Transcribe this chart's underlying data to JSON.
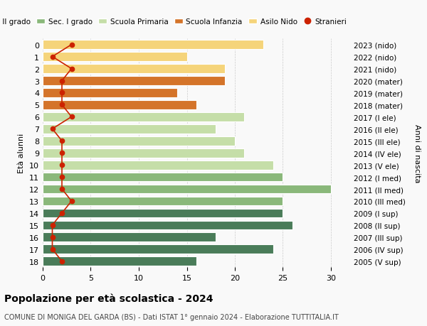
{
  "ages": [
    18,
    17,
    16,
    15,
    14,
    13,
    12,
    11,
    10,
    9,
    8,
    7,
    6,
    5,
    4,
    3,
    2,
    1,
    0
  ],
  "right_labels": [
    "2005 (V sup)",
    "2006 (IV sup)",
    "2007 (III sup)",
    "2008 (II sup)",
    "2009 (I sup)",
    "2010 (III med)",
    "2011 (II med)",
    "2012 (I med)",
    "2013 (V ele)",
    "2014 (IV ele)",
    "2015 (III ele)",
    "2016 (II ele)",
    "2017 (I ele)",
    "2018 (mater)",
    "2019 (mater)",
    "2020 (mater)",
    "2021 (nido)",
    "2022 (nido)",
    "2023 (nido)"
  ],
  "bar_values": [
    16,
    24,
    18,
    26,
    25,
    25,
    30,
    25,
    24,
    21,
    20,
    18,
    21,
    16,
    14,
    19,
    19,
    15,
    23
  ],
  "bar_colors": [
    "#4a7c59",
    "#4a7c59",
    "#4a7c59",
    "#4a7c59",
    "#4a7c59",
    "#8ab87a",
    "#8ab87a",
    "#8ab87a",
    "#c5dea8",
    "#c5dea8",
    "#c5dea8",
    "#c5dea8",
    "#c5dea8",
    "#d4742a",
    "#d4742a",
    "#d4742a",
    "#f5d47a",
    "#f5d47a",
    "#f5d47a"
  ],
  "stranieri_values": [
    2,
    1,
    1,
    1,
    2,
    3,
    2,
    2,
    2,
    2,
    2,
    1,
    3,
    2,
    2,
    2,
    3,
    1,
    3
  ],
  "legend_labels": [
    "Sec. II grado",
    "Sec. I grado",
    "Scuola Primaria",
    "Scuola Infanzia",
    "Asilo Nido",
    "Stranieri"
  ],
  "legend_colors": [
    "#4a7c59",
    "#8ab87a",
    "#c5dea8",
    "#d4742a",
    "#f5d47a",
    "#cc2200"
  ],
  "title": "Popolazione per età scolastica - 2024",
  "subtitle": "COMUNE DI MONIGA DEL GARDA (BS) - Dati ISTAT 1° gennaio 2024 - Elaborazione TUTTITALIA.IT",
  "ylabel_left": "Età alunni",
  "ylabel_right": "Anni di nascita",
  "xlim": [
    0,
    32
  ],
  "bg_color": "#f9f9f9"
}
